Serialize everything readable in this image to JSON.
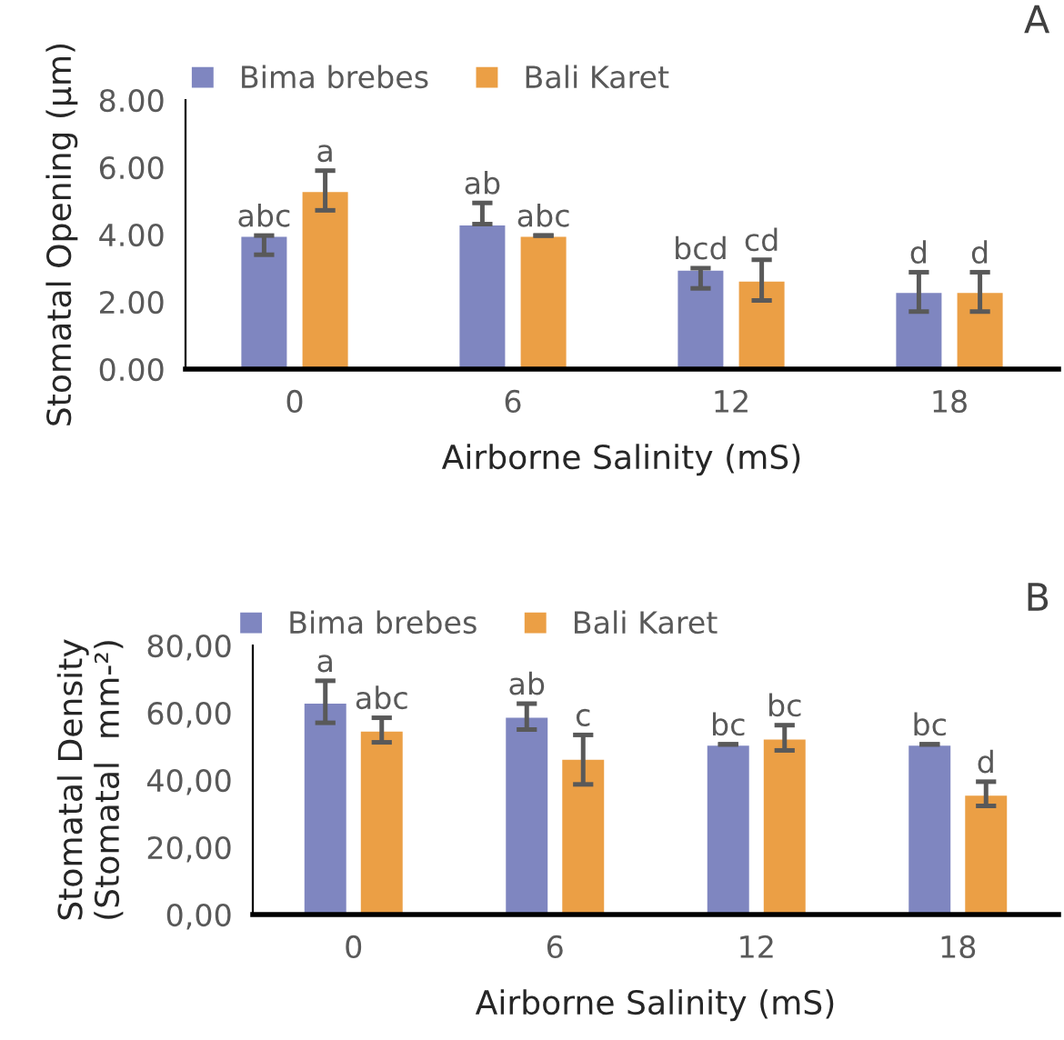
{
  "chart_data": [
    {
      "type": "bar",
      "xlabel": "Airborne Salinity (mS)",
      "ylabel": "Stomatal Opening (µm)",
      "categories": [
        "0",
        "6",
        "12",
        "18"
      ],
      "series": [
        {
          "name": "Bima brebes",
          "color": "#7f86c0",
          "values": [
            3.97,
            4.31,
            2.96,
            2.3
          ],
          "errors": [
            [
              3.4,
              3.97
            ],
            [
              4.31,
              4.94
            ],
            [
              2.4,
              3.0
            ],
            [
              1.71,
              2.88
            ]
          ],
          "value_labels": [
            "abc",
            "ab",
            "bcd",
            "d"
          ]
        },
        {
          "name": "Bali Karet",
          "color": "#eb9f45",
          "values": [
            5.3,
            3.97,
            2.64,
            2.3
          ],
          "errors": [
            [
              4.72,
              5.9
            ],
            [
              3.97,
              3.97
            ],
            [
              2.04,
              3.25
            ],
            [
              1.71,
              2.88
            ]
          ],
          "value_labels": [
            "a",
            "abc",
            "cd",
            "d"
          ]
        }
      ],
      "ylim": [
        0,
        8
      ],
      "yticks": [
        {
          "value": 0,
          "label": "0.00"
        },
        {
          "value": 2,
          "label": "2.00"
        },
        {
          "value": 4,
          "label": "4.00"
        },
        {
          "value": 6,
          "label": "6.00"
        },
        {
          "value": 8,
          "label": "8.00"
        }
      ],
      "grid": false,
      "legend": "top",
      "annotations": [
        "A"
      ]
    },
    {
      "type": "bar",
      "xlabel": "Airborne Salinity (mS)",
      "ylabel": "Stomatal Density\n(Stomatal  mm-²)",
      "categories": [
        "0",
        "6",
        "12",
        "18"
      ],
      "series": [
        {
          "name": "Bima brebes",
          "color": "#7f86c0",
          "values": [
            63.1,
            58.9,
            50.6,
            50.6
          ],
          "errors": [
            [
              57.0,
              69.5
            ],
            [
              55.0,
              62.7
            ],
            [
              50.6,
              50.6
            ],
            [
              50.6,
              50.6
            ]
          ],
          "value_labels": [
            "a",
            "ab",
            "bc",
            "bc"
          ]
        },
        {
          "name": "Bali Karet",
          "color": "#eb9f45",
          "values": [
            54.8,
            46.4,
            52.4,
            35.7
          ],
          "errors": [
            [
              51.2,
              58.5
            ],
            [
              38.7,
              53.4
            ],
            [
              48.8,
              56.3
            ],
            [
              32.3,
              39.5
            ]
          ],
          "value_labels": [
            "abc",
            "c",
            "bc",
            "d"
          ]
        }
      ],
      "ylim": [
        0,
        80
      ],
      "yticks": [
        {
          "value": 0,
          "label": "0,00"
        },
        {
          "value": 20,
          "label": "20,00"
        },
        {
          "value": 40,
          "label": "40,00"
        },
        {
          "value": 60,
          "label": "60,00"
        },
        {
          "value": 80,
          "label": "80,00"
        }
      ],
      "grid": false,
      "legend": "top",
      "annotations": [
        "B"
      ]
    }
  ]
}
